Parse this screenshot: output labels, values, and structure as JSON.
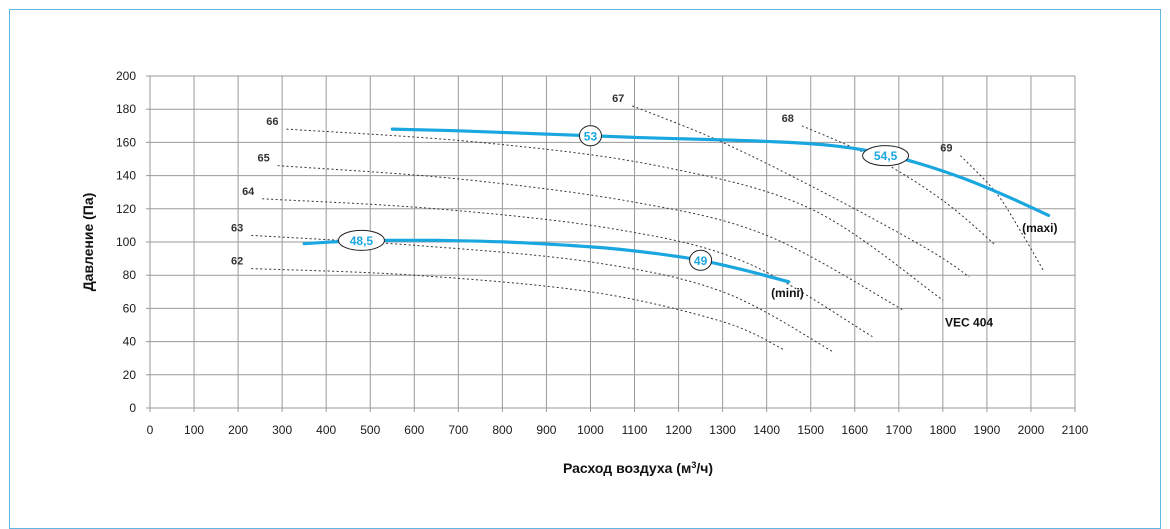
{
  "chart_data": {
    "type": "line",
    "xlabel_main": "Расход воздуха (м",
    "xlabel_sup": "3",
    "xlabel_tail": "/ч)",
    "ylabel": "Давление (Па)",
    "xlim": [
      0,
      2100
    ],
    "ylim": [
      0,
      200
    ],
    "x_ticks": [
      0,
      100,
      200,
      300,
      400,
      500,
      600,
      700,
      800,
      900,
      1000,
      1100,
      1200,
      1300,
      1400,
      1500,
      1600,
      1700,
      1800,
      1900,
      2000,
      2100
    ],
    "y_ticks": [
      0,
      20,
      40,
      60,
      80,
      100,
      120,
      140,
      160,
      180,
      200
    ],
    "grid": true,
    "curve_color": "#1aa6df",
    "series": [
      {
        "name": "(maxi)",
        "x": [
          550,
          700,
          900,
          1100,
          1300,
          1450,
          1550,
          1650,
          1750,
          1850,
          1950,
          2040
        ],
        "y": [
          168,
          167,
          165,
          163,
          161.5,
          160,
          158,
          154,
          147,
          138,
          127,
          116
        ]
      },
      {
        "name": "(mini)",
        "x": [
          350,
          450,
          550,
          650,
          750,
          850,
          950,
          1050,
          1150,
          1250,
          1350,
          1450
        ],
        "y": [
          99,
          100.5,
          101,
          101,
          100.5,
          99.5,
          98,
          96,
          93,
          89,
          83,
          76
        ]
      }
    ],
    "noise_curves": [
      {
        "label": "62",
        "x": [
          230,
          600,
          1000,
          1300,
          1440
        ],
        "y": [
          84,
          80,
          70,
          52,
          35
        ]
      },
      {
        "label": "63",
        "x": [
          230,
          600,
          1000,
          1300,
          1550
        ],
        "y": [
          104,
          98,
          88,
          70,
          34
        ]
      },
      {
        "label": "64",
        "x": [
          255,
          650,
          1050,
          1350,
          1640
        ],
        "y": [
          126,
          120,
          108,
          88,
          43
        ]
      },
      {
        "label": "65",
        "x": [
          290,
          700,
          1100,
          1400,
          1710
        ],
        "y": [
          146,
          138,
          124,
          104,
          59
        ]
      },
      {
        "label": "66",
        "x": [
          310,
          750,
          1150,
          1500,
          1800
        ],
        "y": [
          168,
          160,
          146,
          120,
          65
        ]
      },
      {
        "label": "67",
        "x": [
          1095,
          1300,
          1550,
          1770,
          1860
        ],
        "y": [
          182,
          160,
          127,
          95,
          79
        ]
      },
      {
        "label": "68",
        "x": [
          1480,
          1650,
          1800,
          1920
        ],
        "y": [
          170,
          150,
          125,
          98
        ]
      },
      {
        "label": "69",
        "x": [
          1840,
          1920,
          1980,
          2030
        ],
        "y": [
          152,
          130,
          105,
          82
        ]
      }
    ],
    "badges": [
      {
        "text": "53",
        "x": 1000,
        "y": 164
      },
      {
        "text": "54,5",
        "x": 1670,
        "y": 152
      },
      {
        "text": "48,5",
        "x": 480,
        "y": 101
      },
      {
        "text": "49",
        "x": 1250,
        "y": 89
      }
    ],
    "annotations": [
      {
        "text": "(maxi)",
        "x": 1980,
        "y": 106
      },
      {
        "text": "(mini)",
        "x": 1410,
        "y": 67
      },
      {
        "text": "VEC 404",
        "x": 1805,
        "y": 49
      }
    ]
  }
}
